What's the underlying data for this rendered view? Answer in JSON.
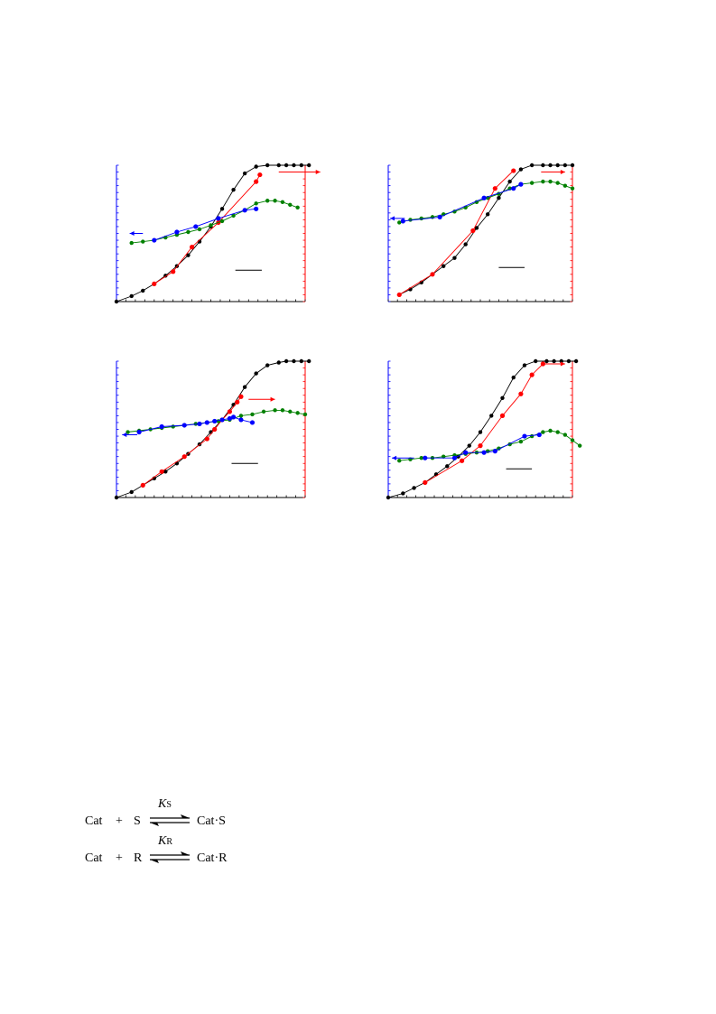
{
  "chart_data": [
    {
      "type": "line",
      "left_axis_color": "#0000ff",
      "right_axis_color": "#ff0000",
      "xlim": [
        0,
        100
      ],
      "ylim_left": [
        0,
        100
      ],
      "ylim_right": [
        0,
        100
      ],
      "grid": false,
      "series": [
        {
          "axis": "right",
          "color": "#000000",
          "marker_size": 2.2,
          "x": [
            0,
            8,
            14,
            20,
            26,
            32,
            38,
            44,
            50,
            56,
            62,
            68,
            74,
            80,
            86,
            90,
            94,
            98,
            102
          ],
          "y": [
            0,
            4,
            8,
            13,
            19,
            26,
            34,
            44,
            55,
            68,
            82,
            94,
            99,
            100,
            100,
            100,
            100,
            100,
            100
          ]
        },
        {
          "axis": "right",
          "color": "#ff0000",
          "marker_size": 2.6,
          "x": [
            20,
            30,
            40,
            54,
            74,
            76
          ],
          "y": [
            13,
            22,
            40,
            58,
            88,
            93
          ]
        },
        {
          "axis": "left",
          "color": "#008000",
          "marker_size": 2.2,
          "x": [
            8,
            14,
            20,
            26,
            32,
            38,
            44,
            50,
            56,
            62,
            68,
            74,
            80,
            84,
            88,
            92,
            96
          ],
          "y": [
            43,
            44,
            45,
            47,
            49,
            51,
            53,
            56,
            59,
            63,
            67,
            72,
            74,
            74,
            73,
            71,
            69
          ]
        },
        {
          "axis": "left",
          "color": "#0000ff",
          "marker_size": 2.6,
          "x": [
            20,
            32,
            42,
            54,
            68,
            74
          ],
          "y": [
            45,
            51,
            55,
            61,
            67,
            68
          ]
        }
      ],
      "left_arrow": {
        "x": [
          14,
          7
        ],
        "y": 50
      },
      "right_arrow": {
        "x": [
          86,
          108
        ],
        "y": 95
      },
      "legend_line": {
        "x": [
          63,
          77
        ],
        "y": 23
      }
    },
    {
      "type": "line",
      "left_axis_color": "#0000ff",
      "right_axis_color": "#ff0000",
      "xlim": [
        0,
        100
      ],
      "ylim_left": [
        0,
        100
      ],
      "ylim_right": [
        0,
        100
      ],
      "grid": false,
      "series": [
        {
          "axis": "right",
          "color": "#000000",
          "marker_size": 2.2,
          "x": [
            6,
            12,
            18,
            24,
            30,
            36,
            42,
            48,
            54,
            60,
            66,
            72,
            78,
            84,
            88,
            92,
            96,
            100
          ],
          "y": [
            5,
            9,
            14,
            20,
            26,
            32,
            42,
            54,
            64,
            76,
            88,
            97,
            100,
            100,
            100,
            100,
            100,
            100
          ]
        },
        {
          "axis": "right",
          "color": "#ff0000",
          "marker_size": 2.6,
          "x": [
            6,
            24,
            46,
            58,
            68
          ],
          "y": [
            5,
            20,
            52,
            83,
            96
          ]
        },
        {
          "axis": "left",
          "color": "#008000",
          "marker_size": 2.2,
          "x": [
            6,
            12,
            18,
            24,
            30,
            36,
            42,
            48,
            54,
            60,
            66,
            72,
            78,
            84,
            88,
            92,
            96,
            100
          ],
          "y": [
            58,
            60,
            61,
            62,
            64,
            66,
            69,
            73,
            76,
            79,
            83,
            86,
            87,
            88,
            88,
            87,
            85,
            83
          ]
        },
        {
          "axis": "left",
          "color": "#0000ff",
          "marker_size": 2.6,
          "x": [
            8,
            28,
            52,
            68,
            72
          ],
          "y": [
            59,
            62,
            76,
            83,
            86
          ]
        }
      ],
      "left_arrow": {
        "x": [
          9,
          1
        ],
        "y": 61
      },
      "right_arrow": {
        "x": [
          83,
          96
        ],
        "y": 95
      },
      "legend_line": {
        "x": [
          60,
          74
        ],
        "y": 25
      }
    },
    {
      "type": "line",
      "left_axis_color": "#0000ff",
      "right_axis_color": "#ff0000",
      "xlim": [
        0,
        100
      ],
      "ylim_left": [
        0,
        100
      ],
      "ylim_right": [
        0,
        100
      ],
      "grid": false,
      "series": [
        {
          "axis": "right",
          "color": "#000000",
          "marker_size": 2.2,
          "x": [
            0,
            8,
            14,
            20,
            26,
            32,
            38,
            44,
            50,
            56,
            62,
            68,
            74,
            80,
            86,
            90,
            94,
            98,
            102
          ],
          "y": [
            0,
            4,
            9,
            14,
            19,
            25,
            32,
            39,
            48,
            57,
            68,
            81,
            91,
            97,
            99,
            100,
            100,
            100,
            100
          ]
        },
        {
          "axis": "right",
          "color": "#ff0000",
          "marker_size": 2.6,
          "x": [
            14,
            24,
            36,
            48,
            52,
            56,
            60,
            64,
            66
          ],
          "y": [
            9,
            19,
            30,
            43,
            50,
            57,
            63,
            70,
            74
          ]
        },
        {
          "axis": "left",
          "color": "#008000",
          "marker_size": 2.2,
          "x": [
            6,
            12,
            18,
            24,
            30,
            36,
            42,
            48,
            54,
            60,
            66,
            72,
            78,
            84,
            88,
            92,
            96,
            100
          ],
          "y": [
            48,
            49,
            50,
            51,
            52,
            53,
            54,
            55,
            56,
            57,
            60,
            61,
            63,
            64,
            64,
            63,
            62,
            61
          ]
        },
        {
          "axis": "left",
          "color": "#0000ff",
          "marker_size": 2.6,
          "x": [
            12,
            24,
            36,
            44,
            48,
            52,
            56,
            60,
            62,
            66,
            72
          ],
          "y": [
            48,
            52,
            53,
            54,
            55,
            56,
            57,
            58,
            59,
            57,
            55
          ]
        }
      ],
      "left_arrow": {
        "x": [
          11,
          3
        ],
        "y": 46
      },
      "right_arrow": {
        "x": [
          70,
          84
        ],
        "y": 72
      },
      "legend_line": {
        "x": [
          61,
          75
        ],
        "y": 25
      }
    },
    {
      "type": "line",
      "left_axis_color": "#0000ff",
      "right_axis_color": "#ff0000",
      "xlim": [
        0,
        100
      ],
      "ylim_left": [
        0,
        100
      ],
      "ylim_right": [
        0,
        100
      ],
      "grid": false,
      "series": [
        {
          "axis": "right",
          "color": "#000000",
          "marker_size": 2.2,
          "x": [
            0,
            8,
            14,
            20,
            26,
            32,
            38,
            44,
            50,
            56,
            62,
            68,
            74,
            80,
            86,
            90,
            94,
            98,
            102
          ],
          "y": [
            0,
            3,
            7,
            11,
            17,
            23,
            30,
            38,
            48,
            60,
            73,
            88,
            97,
            100,
            100,
            100,
            100,
            100,
            100
          ]
        },
        {
          "axis": "right",
          "color": "#ff0000",
          "marker_size": 2.6,
          "x": [
            20,
            40,
            50,
            62,
            72,
            78,
            84
          ],
          "y": [
            11,
            27,
            38,
            60,
            76,
            90,
            98
          ]
        },
        {
          "axis": "left",
          "color": "#008000",
          "marker_size": 2.2,
          "x": [
            6,
            12,
            18,
            24,
            30,
            36,
            42,
            48,
            54,
            60,
            66,
            72,
            78,
            84,
            88,
            92,
            96,
            100,
            104
          ],
          "y": [
            27,
            28,
            29,
            29,
            30,
            31,
            32,
            33,
            34,
            36,
            39,
            41,
            45,
            48,
            49,
            48,
            46,
            42,
            38
          ]
        },
        {
          "axis": "left",
          "color": "#0000ff",
          "marker_size": 2.6,
          "x": [
            20,
            36,
            42,
            52,
            58,
            74,
            82
          ],
          "y": [
            29,
            29,
            33,
            33,
            34,
            45,
            46
          ]
        }
      ],
      "left_arrow": {
        "x": [
          14,
          2
        ],
        "y": 29
      },
      "right_arrow": {
        "x": [
          84,
          96
        ],
        "y": 98
      },
      "legend_line": {
        "x": [
          64,
          78
        ],
        "y": 21
      }
    }
  ],
  "scheme": {
    "lines": [
      {
        "left": "Cat",
        "plus": "+",
        "right_reagent": "S",
        "product": "Cat·S",
        "k_symbol": "K",
        "k_sub": "S"
      },
      {
        "left": "Cat",
        "plus": "+",
        "right_reagent": "R",
        "product": "Cat·R",
        "k_symbol": "K",
        "k_sub": "R"
      }
    ]
  }
}
